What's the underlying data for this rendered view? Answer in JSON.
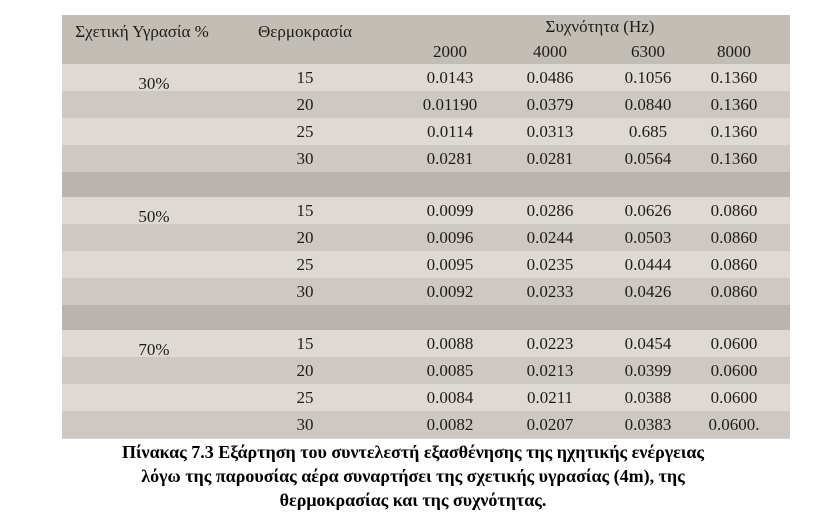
{
  "table": {
    "header": {
      "humidity": "Σχετική Υγρασία %",
      "temperature": "Θερμοκρασία",
      "frequency": "Συχνότητα (Hz)",
      "frequencies": [
        "2000",
        "4000",
        "6300",
        "8000"
      ]
    },
    "groups": [
      {
        "humidity": "30%",
        "rows": [
          [
            "15",
            "0.0143",
            "0.0486",
            "0.1056",
            "0.1360"
          ],
          [
            "20",
            "0.01190",
            "0.0379",
            "0.0840",
            "0.1360"
          ],
          [
            "25",
            "0.0114",
            "0.0313",
            "0.685",
            "0.1360"
          ],
          [
            "30",
            "0.0281",
            "0.0281",
            "0.0564",
            "0.1360"
          ]
        ]
      },
      {
        "humidity": "50%",
        "rows": [
          [
            "15",
            "0.0099",
            "0.0286",
            "0.0626",
            "0.0860"
          ],
          [
            "20",
            "0.0096",
            "0.0244",
            "0.0503",
            "0.0860"
          ],
          [
            "25",
            "0.0095",
            "0.0235",
            "0.0444",
            "0.0860"
          ],
          [
            "30",
            "0.0092",
            "0.0233",
            "0.0426",
            "0.0860"
          ]
        ]
      },
      {
        "humidity": "70%",
        "rows": [
          [
            "15",
            "0.0088",
            "0.0223",
            "0.0454",
            "0.0600"
          ],
          [
            "20",
            "0.0085",
            "0.0213",
            "0.0399",
            "0.0600"
          ],
          [
            "25",
            "0.0084",
            "0.0211",
            "0.0388",
            "0.0600"
          ],
          [
            "30",
            "0.0082",
            "0.0207",
            "0.0383",
            "0.0600."
          ]
        ]
      }
    ]
  },
  "caption": {
    "lines": [
      "Πίνακας 7.3 Εξάρτηση του συντελεστή εξασθένησης της ηχητικής ενέργειας",
      "λόγω της παρουσίας αέρα συναρτήσει της σχετικής υγρασίας (4m), της",
      "θερμοκρασίας και της συχνότητας."
    ]
  }
}
